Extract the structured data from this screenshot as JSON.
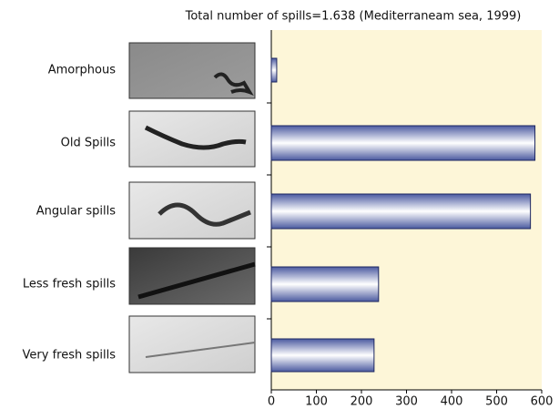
{
  "chart_data": {
    "type": "bar",
    "orientation": "horizontal",
    "title": "Total number of spills=1.638 (Mediterraneam sea, 1999)",
    "categories": [
      "Amorphous",
      "Old Spills",
      "Angular spills",
      "Less fresh spills",
      "Very fresh spills"
    ],
    "values": [
      12,
      585,
      575,
      238,
      228
    ],
    "color": "#5a6aa8",
    "xlim": [
      0,
      600
    ],
    "xticks": [
      0,
      100,
      200,
      300,
      400,
      500,
      600
    ],
    "background": "#fdf6d8"
  }
}
